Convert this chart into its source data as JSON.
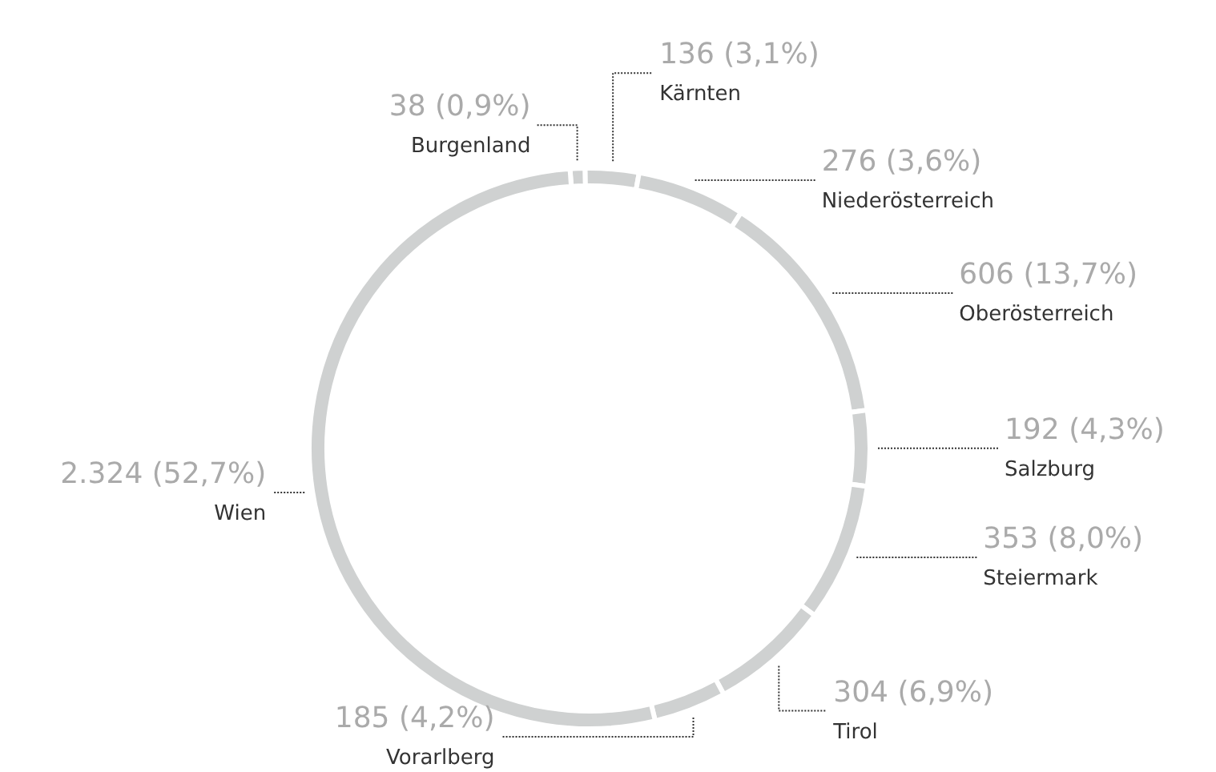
{
  "chart_data": {
    "type": "donut",
    "categories": [
      "Burgenland",
      "Kärnten",
      "Niederösterreich",
      "Oberösterreich",
      "Salzburg",
      "Steiermark",
      "Tirol",
      "Vorarlberg",
      "Wien"
    ],
    "values": [
      38,
      136,
      276,
      606,
      192,
      353,
      304,
      185,
      2324
    ],
    "colors": [
      "#cfd1d1",
      "#cfd1d1",
      "#cfd1d1",
      "#cfd1d1",
      "#cfd1d1",
      "#cfd1d1",
      "#cfd1d1",
      "#cfd1d1",
      "#cfd1d1"
    ],
    "value_labels": [
      "38 (0,9%)",
      "136 (3,1%)",
      "276 (3,6%)",
      "606 (13,7%)",
      "192 (4,3%)",
      "353 (8,0%)",
      "304 (6,9%)",
      "185 (4,2%)",
      "2.324 (52,7%)"
    ]
  }
}
